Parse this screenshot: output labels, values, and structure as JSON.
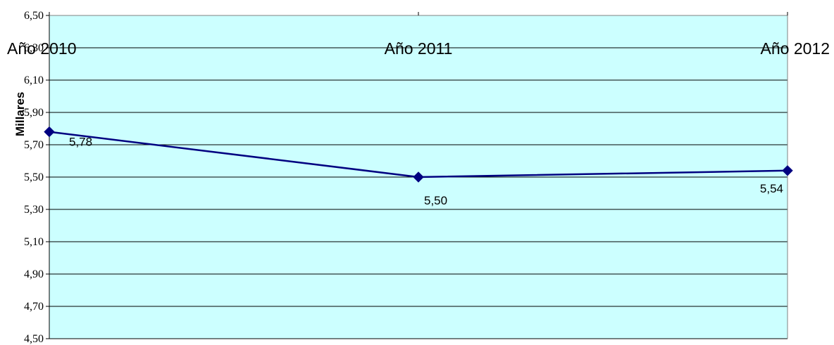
{
  "chart_data": {
    "type": "line",
    "title": "",
    "xlabel": "",
    "ylabel": "Millares",
    "categories": [
      "Año 2010",
      "Año 2011",
      "Año 2012"
    ],
    "y_tick_labels": [
      "4,50",
      "4,70",
      "4,90",
      "5,10",
      "5,30",
      "5,50",
      "5,70",
      "5,90",
      "6,10",
      "6,30",
      "6,50"
    ],
    "ylim": [
      4.5,
      6.5
    ],
    "series": [
      {
        "values": [
          5.78,
          5.5,
          5.54
        ],
        "labels": [
          "5,78",
          "5,50",
          "5,54"
        ]
      }
    ],
    "grid": true,
    "colors": {
      "plot_background": "#ccffff",
      "line": "#000080",
      "grid": "#000000"
    }
  }
}
